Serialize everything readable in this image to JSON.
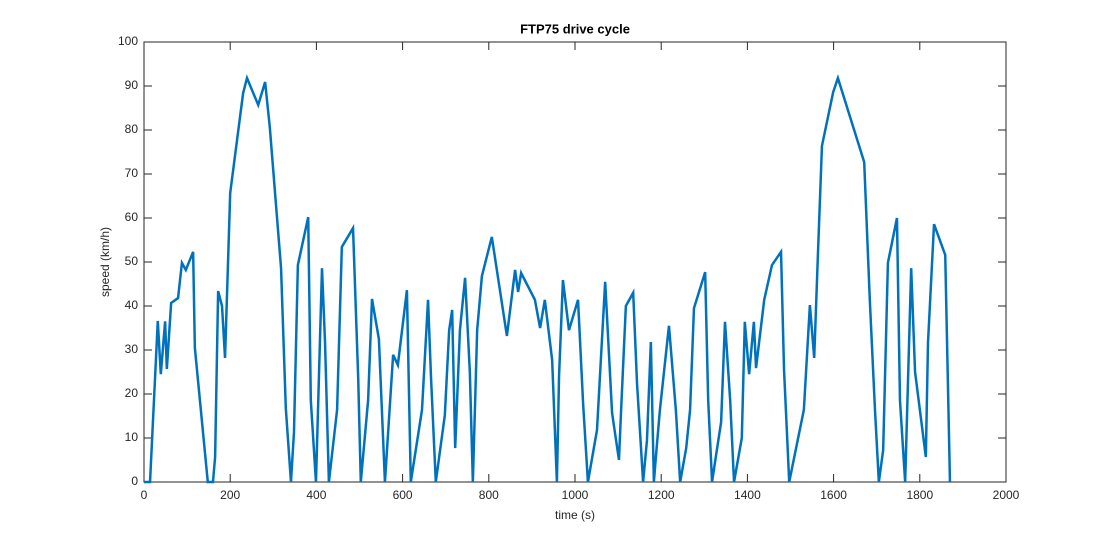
{
  "chart_data": {
    "type": "line",
    "title": "FTP75 drive cycle",
    "x_label": "time (s)",
    "y_label": "speed (km/h)",
    "color": "#0072bd",
    "grid": false,
    "xlim": [
      0,
      2000
    ],
    "xticks": [
      0,
      200,
      400,
      600,
      800,
      1000,
      1200,
      1400,
      1600,
      1800,
      2000
    ],
    "ylim": [
      0,
      100
    ],
    "yticks": [
      0,
      10,
      20,
      30,
      40,
      50,
      60,
      70,
      80,
      90,
      100
    ],
    "x": [
      0,
      14,
      32,
      39,
      49,
      53,
      63,
      79,
      88,
      97,
      114,
      118,
      148,
      160,
      165,
      172,
      181,
      188,
      200,
      230,
      239,
      265,
      281,
      292,
      318,
      329,
      341,
      348,
      357,
      381,
      387,
      399,
      413,
      420,
      429,
      448,
      459,
      485,
      497,
      503,
      520,
      529,
      545,
      559,
      578,
      589,
      610,
      619,
      645,
      659,
      666,
      677,
      698,
      708,
      715,
      722,
      733,
      745,
      756,
      763,
      773,
      784,
      807,
      842,
      861,
      868,
      875,
      907,
      919,
      930,
      947,
      958,
      963,
      972,
      986,
      1007,
      1019,
      1030,
      1051,
      1070,
      1086,
      1102,
      1107,
      1118,
      1135,
      1144,
      1158,
      1167,
      1176,
      1183,
      1188,
      1197,
      1218,
      1234,
      1244,
      1258,
      1267,
      1276,
      1302,
      1309,
      1318,
      1327,
      1339,
      1348,
      1360,
      1369,
      1387,
      1394,
      1404,
      1415,
      1420,
      1439,
      1457,
      1478,
      1485,
      1497,
      1531,
      1545,
      1555,
      1564,
      1573,
      1599,
      1610,
      1671,
      1684,
      1696,
      1705,
      1715,
      1726,
      1747,
      1754,
      1766,
      1780,
      1789,
      1814,
      1819,
      1833,
      1859,
      1870
    ],
    "values": [
      0,
      0,
      36.6,
      24.5,
      36.5,
      25.7,
      40.7,
      41.8,
      49.8,
      48.2,
      52.3,
      30.5,
      0,
      0,
      5.7,
      43.4,
      40,
      28.2,
      65.7,
      88.4,
      91.8,
      85.7,
      90.9,
      80.5,
      48.6,
      16.8,
      0,
      11.4,
      49.3,
      60.2,
      18.6,
      0,
      48.6,
      31.8,
      0,
      16.4,
      53.4,
      57.7,
      23.6,
      0,
      18.6,
      41.6,
      32.5,
      0,
      28.9,
      26.6,
      43.6,
      0,
      16.4,
      41.4,
      23.6,
      0,
      15.2,
      34.5,
      39.1,
      7.7,
      34.5,
      46.4,
      25,
      0,
      34.5,
      46.8,
      55.7,
      33.2,
      48.2,
      43.2,
      47.5,
      41.4,
      35,
      41.4,
      27.7,
      0,
      24.1,
      45.9,
      34.5,
      41.4,
      17.5,
      0,
      11.8,
      45.5,
      15.7,
      5,
      16.4,
      40,
      43,
      22.3,
      0,
      9.5,
      31.8,
      0,
      6.1,
      16.4,
      35.5,
      16.4,
      0,
      7.7,
      16.4,
      39.5,
      47.7,
      18.6,
      0,
      5.9,
      13.6,
      36.4,
      18.6,
      0,
      10,
      36.4,
      24.5,
      36.4,
      25.9,
      41.4,
      49.3,
      52.3,
      25.5,
      0,
      16.4,
      40.2,
      28.2,
      52.7,
      76.4,
      88.6,
      91.8,
      72.7,
      41.4,
      16.4,
      0,
      7.3,
      49.8,
      60,
      18.6,
      0,
      48.6,
      25,
      5.7,
      31.6,
      58.6,
      51.6,
      0
    ]
  }
}
